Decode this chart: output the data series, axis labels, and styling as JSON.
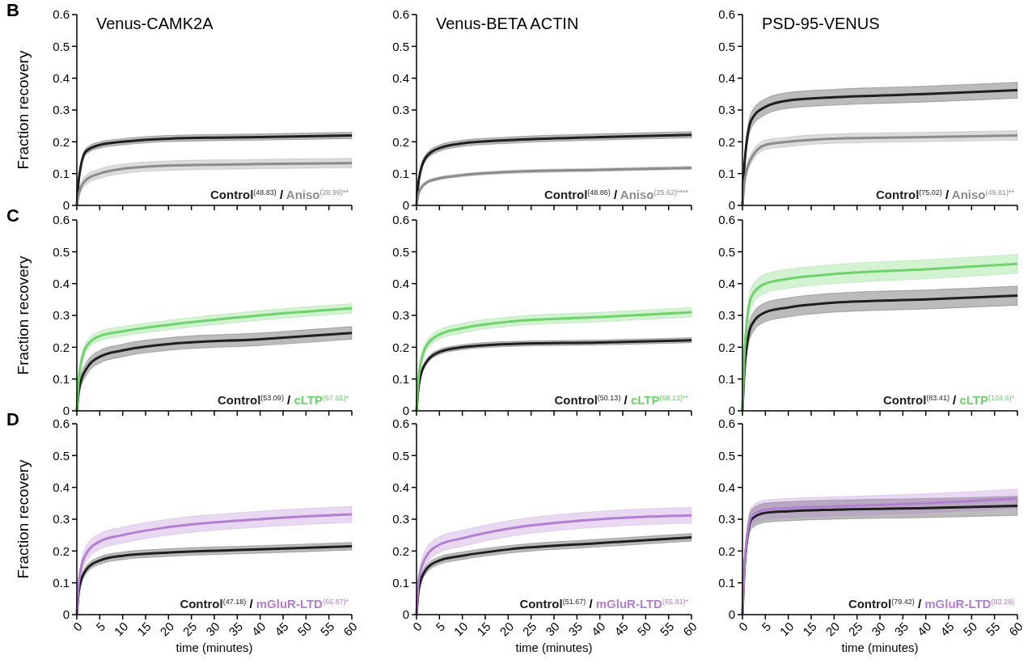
{
  "chart_data": [
    {
      "type": "line",
      "title": "Venus-CAMK2A",
      "ylabel": "Fraction recovery",
      "annotations": [
        "B",
        "/"
      ],
      "x": [
        0,
        0.5,
        2,
        5,
        10,
        20,
        40,
        60
      ],
      "xlim": [
        0,
        60
      ],
      "xticks": [
        0,
        5,
        10,
        15,
        20,
        25,
        30,
        35,
        40,
        45,
        50,
        55,
        60
      ],
      "ylim": [
        0,
        0.6
      ],
      "yticks": [
        0.0,
        0.1,
        0.2,
        0.3,
        0.4,
        0.5,
        0.6
      ],
      "tick_labels": "y",
      "legend": "bottom right",
      "series": [
        {
          "name": "Control$^{(48.83)}$",
          "color": "#1f1f1f",
          "values": [
            0,
            0.09,
            0.17,
            0.19,
            0.2,
            0.21,
            0.215,
            0.22
          ],
          "lower": [
            0,
            0.08,
            0.16,
            0.18,
            0.19,
            0.2,
            0.205,
            0.21
          ],
          "upper": [
            0,
            0.1,
            0.18,
            0.2,
            0.21,
            0.22,
            0.225,
            0.23
          ]
        },
        {
          "name": "Aniso$^{(28.99)**}$",
          "color": "#8c8c8c",
          "values": [
            0,
            0.04,
            0.08,
            0.1,
            0.115,
            0.125,
            0.13,
            0.133
          ],
          "lower": [
            0,
            0.03,
            0.065,
            0.085,
            0.1,
            0.11,
            0.115,
            0.118
          ],
          "upper": [
            0,
            0.05,
            0.095,
            0.115,
            0.13,
            0.14,
            0.145,
            0.148
          ]
        }
      ]
    },
    {
      "type": "line",
      "title": "Venus-BETA ACTIN",
      "annotations": [
        "/"
      ],
      "x": [
        0,
        0.5,
        2,
        5,
        10,
        20,
        40,
        60
      ],
      "xlim": [
        0,
        60
      ],
      "xticks": [
        0,
        5,
        10,
        15,
        20,
        25,
        30,
        35,
        40,
        45,
        50,
        55,
        60
      ],
      "ylim": [
        0,
        0.6
      ],
      "yticks": [
        0.0,
        0.1,
        0.2,
        0.3,
        0.4,
        0.5,
        0.6
      ],
      "tick_labels": "y",
      "legend": "bottom right",
      "series": [
        {
          "name": "Control$^{(48.86)}$",
          "color": "#1f1f1f",
          "values": [
            0,
            0.08,
            0.15,
            0.18,
            0.195,
            0.205,
            0.215,
            0.222
          ],
          "lower": [
            0,
            0.07,
            0.14,
            0.17,
            0.185,
            0.195,
            0.205,
            0.212
          ],
          "upper": [
            0,
            0.09,
            0.16,
            0.19,
            0.205,
            0.215,
            0.225,
            0.232
          ]
        },
        {
          "name": "Aniso$^{(25.62)****}$",
          "color": "#8c8c8c",
          "values": [
            0,
            0.04,
            0.07,
            0.085,
            0.095,
            0.105,
            0.112,
            0.118
          ],
          "lower": [
            0,
            0.035,
            0.065,
            0.08,
            0.09,
            0.1,
            0.107,
            0.113
          ],
          "upper": [
            0,
            0.045,
            0.075,
            0.09,
            0.1,
            0.11,
            0.117,
            0.123
          ]
        }
      ]
    },
    {
      "type": "line",
      "title": "PSD-95-VENUS",
      "annotations": [
        "/"
      ],
      "x": [
        0,
        0.5,
        2,
        5,
        10,
        20,
        40,
        60
      ],
      "xlim": [
        0,
        60
      ],
      "xticks": [
        0,
        5,
        10,
        15,
        20,
        25,
        30,
        35,
        40,
        45,
        50,
        55,
        60
      ],
      "ylim": [
        0,
        0.6
      ],
      "yticks": [
        0.0,
        0.1,
        0.2,
        0.3,
        0.4,
        0.5,
        0.6
      ],
      "tick_labels": "y",
      "legend": "bottom right",
      "series": [
        {
          "name": "Control$^{(75.02)}$",
          "color": "#1f1f1f",
          "values": [
            0,
            0.14,
            0.27,
            0.31,
            0.33,
            0.34,
            0.35,
            0.362
          ],
          "lower": [
            0,
            0.12,
            0.245,
            0.285,
            0.305,
            0.315,
            0.325,
            0.337
          ],
          "upper": [
            0,
            0.16,
            0.295,
            0.335,
            0.355,
            0.365,
            0.375,
            0.387
          ]
        },
        {
          "name": "Aniso$^{(49.81)**}$",
          "color": "#8c8c8c",
          "values": [
            0,
            0.08,
            0.15,
            0.19,
            0.2,
            0.21,
            0.215,
            0.22
          ],
          "lower": [
            0,
            0.07,
            0.135,
            0.175,
            0.185,
            0.195,
            0.2,
            0.205
          ],
          "upper": [
            0,
            0.09,
            0.165,
            0.205,
            0.215,
            0.225,
            0.23,
            0.235
          ]
        }
      ]
    },
    {
      "type": "line",
      "ylabel": "Fraction recovery",
      "annotations": [
        "C",
        "/"
      ],
      "x": [
        0,
        0.5,
        2,
        5,
        10,
        20,
        40,
        60
      ],
      "xlim": [
        0,
        60
      ],
      "xticks": [
        0,
        5,
        10,
        15,
        20,
        25,
        30,
        35,
        40,
        45,
        50,
        55,
        60
      ],
      "ylim": [
        0,
        0.6
      ],
      "yticks": [
        0.0,
        0.1,
        0.2,
        0.3,
        0.4,
        0.5,
        0.6
      ],
      "tick_labels": "y",
      "legend": "bottom right",
      "series": [
        {
          "name": "Control$^{(53.09)}$",
          "color": "#1f1f1f",
          "values": [
            0,
            0.07,
            0.13,
            0.17,
            0.19,
            0.21,
            0.225,
            0.245
          ],
          "lower": [
            0,
            0.05,
            0.11,
            0.15,
            0.17,
            0.19,
            0.205,
            0.225
          ],
          "upper": [
            0,
            0.09,
            0.15,
            0.19,
            0.21,
            0.23,
            0.245,
            0.265
          ]
        },
        {
          "name": "cLTP$^{(67.65)*}$",
          "color": "#6ed36a",
          "values": [
            0,
            0.11,
            0.2,
            0.235,
            0.25,
            0.27,
            0.3,
            0.322
          ],
          "lower": [
            0,
            0.095,
            0.185,
            0.22,
            0.235,
            0.255,
            0.285,
            0.307
          ],
          "upper": [
            0,
            0.125,
            0.215,
            0.25,
            0.265,
            0.285,
            0.315,
            0.337
          ]
        }
      ]
    },
    {
      "type": "line",
      "annotations": [
        "/"
      ],
      "x": [
        0,
        0.5,
        2,
        5,
        10,
        20,
        40,
        60
      ],
      "xlim": [
        0,
        60
      ],
      "xticks": [
        0,
        5,
        10,
        15,
        20,
        25,
        30,
        35,
        40,
        45,
        50,
        55,
        60
      ],
      "ylim": [
        0,
        0.6
      ],
      "yticks": [
        0.0,
        0.1,
        0.2,
        0.3,
        0.4,
        0.5,
        0.6
      ],
      "tick_labels": "y",
      "legend": "bottom right",
      "series": [
        {
          "name": "Control$^{(50.13)}$",
          "color": "#1f1f1f",
          "values": [
            0,
            0.08,
            0.15,
            0.185,
            0.2,
            0.21,
            0.215,
            0.222
          ],
          "lower": [
            0,
            0.072,
            0.142,
            0.177,
            0.192,
            0.202,
            0.207,
            0.214
          ],
          "upper": [
            0,
            0.088,
            0.158,
            0.193,
            0.208,
            0.218,
            0.223,
            0.23
          ]
        },
        {
          "name": "cLTP$^{(68.13)**}$",
          "color": "#6ed36a",
          "values": [
            0,
            0.11,
            0.2,
            0.24,
            0.26,
            0.28,
            0.295,
            0.31
          ],
          "lower": [
            0,
            0.095,
            0.185,
            0.225,
            0.245,
            0.265,
            0.28,
            0.295
          ],
          "upper": [
            0,
            0.125,
            0.215,
            0.255,
            0.275,
            0.295,
            0.31,
            0.325
          ]
        }
      ]
    },
    {
      "type": "line",
      "annotations": [
        "/"
      ],
      "x": [
        0,
        0.5,
        2,
        5,
        10,
        20,
        40,
        60
      ],
      "xlim": [
        0,
        60
      ],
      "xticks": [
        0,
        5,
        10,
        15,
        20,
        25,
        30,
        35,
        40,
        45,
        50,
        55,
        60
      ],
      "ylim": [
        0,
        0.6
      ],
      "yticks": [
        0.0,
        0.1,
        0.2,
        0.3,
        0.4,
        0.5,
        0.6
      ],
      "tick_labels": "y",
      "legend": "bottom right",
      "series": [
        {
          "name": "Control$^{(83.41)}$",
          "color": "#1f1f1f",
          "values": [
            0,
            0.14,
            0.27,
            0.31,
            0.325,
            0.34,
            0.35,
            0.362
          ],
          "lower": [
            0,
            0.12,
            0.24,
            0.28,
            0.295,
            0.31,
            0.32,
            0.332
          ],
          "upper": [
            0,
            0.16,
            0.3,
            0.34,
            0.355,
            0.37,
            0.38,
            0.392
          ]
        },
        {
          "name": "cLTP$^{(104.6)*}$",
          "color": "#6ed36a",
          "values": [
            0,
            0.2,
            0.36,
            0.4,
            0.415,
            0.43,
            0.445,
            0.462
          ],
          "lower": [
            0,
            0.18,
            0.33,
            0.37,
            0.385,
            0.4,
            0.415,
            0.432
          ],
          "upper": [
            0,
            0.22,
            0.39,
            0.43,
            0.445,
            0.46,
            0.475,
            0.492
          ]
        }
      ]
    },
    {
      "type": "line",
      "xlabel": "time (minutes)",
      "ylabel": "Fraction recovery",
      "annotations": [
        "D",
        "/"
      ],
      "x": [
        0,
        0.5,
        2,
        5,
        10,
        20,
        40,
        60
      ],
      "xlim": [
        0,
        60
      ],
      "xticks": [
        0,
        5,
        10,
        15,
        20,
        25,
        30,
        35,
        40,
        45,
        50,
        55,
        60
      ],
      "ylim": [
        0,
        0.6
      ],
      "yticks": [
        0.0,
        0.1,
        0.2,
        0.3,
        0.4,
        0.5,
        0.6
      ],
      "legend": "bottom right",
      "series": [
        {
          "name": "Control$^{(47.18)}$",
          "color": "#1f1f1f",
          "values": [
            0,
            0.08,
            0.14,
            0.17,
            0.185,
            0.195,
            0.205,
            0.215
          ],
          "lower": [
            0,
            0.07,
            0.128,
            0.158,
            0.173,
            0.183,
            0.193,
            0.203
          ],
          "upper": [
            0,
            0.09,
            0.152,
            0.182,
            0.197,
            0.207,
            0.217,
            0.227
          ]
        },
        {
          "name": "mGluR-LTD$^{(66.87)*}$",
          "color": "#b27fd2",
          "values": [
            0,
            0.11,
            0.19,
            0.23,
            0.25,
            0.275,
            0.3,
            0.315
          ],
          "lower": [
            0,
            0.095,
            0.165,
            0.205,
            0.225,
            0.25,
            0.275,
            0.29
          ],
          "upper": [
            0,
            0.125,
            0.215,
            0.255,
            0.275,
            0.3,
            0.325,
            0.34
          ]
        }
      ]
    },
    {
      "type": "line",
      "xlabel": "time (minutes)",
      "annotations": [
        "/"
      ],
      "x": [
        0,
        0.5,
        2,
        5,
        10,
        20,
        40,
        60
      ],
      "xlim": [
        0,
        60
      ],
      "xticks": [
        0,
        5,
        10,
        15,
        20,
        25,
        30,
        35,
        40,
        45,
        50,
        55,
        60
      ],
      "ylim": [
        0,
        0.6
      ],
      "yticks": [
        0.0,
        0.1,
        0.2,
        0.3,
        0.4,
        0.5,
        0.6
      ],
      "legend": "bottom right",
      "series": [
        {
          "name": "Control$^{(51.67)}$",
          "color": "#1f1f1f",
          "values": [
            0,
            0.08,
            0.14,
            0.17,
            0.185,
            0.205,
            0.225,
            0.243
          ],
          "lower": [
            0,
            0.07,
            0.128,
            0.158,
            0.173,
            0.193,
            0.213,
            0.231
          ],
          "upper": [
            0,
            0.09,
            0.152,
            0.182,
            0.197,
            0.217,
            0.237,
            0.255
          ]
        },
        {
          "name": "mGluR-LTD$^{(65.81)*}$",
          "color": "#b27fd2",
          "values": [
            0,
            0.11,
            0.18,
            0.22,
            0.24,
            0.27,
            0.3,
            0.312
          ],
          "lower": [
            0,
            0.095,
            0.155,
            0.195,
            0.215,
            0.245,
            0.275,
            0.287
          ],
          "upper": [
            0,
            0.125,
            0.205,
            0.245,
            0.265,
            0.295,
            0.325,
            0.337
          ]
        }
      ]
    },
    {
      "type": "line",
      "xlabel": "time (minutes)",
      "annotations": [
        "/"
      ],
      "x": [
        0,
        0.5,
        2,
        5,
        10,
        20,
        40,
        60
      ],
      "xlim": [
        0,
        60
      ],
      "xticks": [
        0,
        5,
        10,
        15,
        20,
        25,
        30,
        35,
        40,
        45,
        50,
        55,
        60
      ],
      "ylim": [
        0,
        0.6
      ],
      "yticks": [
        0.0,
        0.1,
        0.2,
        0.3,
        0.4,
        0.5,
        0.6
      ],
      "legend": "bottom right",
      "series": [
        {
          "name": "Control$^{(79.42)}$",
          "color": "#1f1f1f",
          "values": [
            0,
            0.16,
            0.3,
            0.32,
            0.325,
            0.33,
            0.335,
            0.342
          ],
          "lower": [
            0,
            0.14,
            0.27,
            0.29,
            0.295,
            0.3,
            0.305,
            0.312
          ],
          "upper": [
            0,
            0.18,
            0.33,
            0.35,
            0.355,
            0.36,
            0.365,
            0.372
          ]
        },
        {
          "name": "mGluR-LTD$^{(83.29)}$",
          "color": "#b27fd2",
          "values": [
            0,
            0.17,
            0.31,
            0.33,
            0.335,
            0.34,
            0.35,
            0.365
          ],
          "lower": [
            0,
            0.15,
            0.28,
            0.3,
            0.305,
            0.31,
            0.32,
            0.335
          ],
          "upper": [
            0,
            0.19,
            0.34,
            0.36,
            0.365,
            0.37,
            0.38,
            0.395
          ]
        }
      ]
    }
  ]
}
